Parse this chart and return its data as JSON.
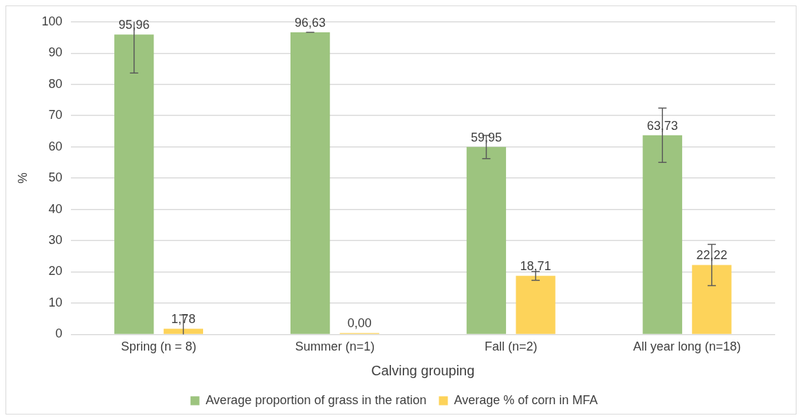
{
  "chart_data": {
    "type": "bar",
    "xlabel": "Calving grouping",
    "ylabel": "%",
    "categories": [
      "Spring (n = 8)",
      "Summer (n=1)",
      "Fall (n=2)",
      "All year long (n=18)"
    ],
    "series": [
      {
        "name": "Average proportion of grass in the ration",
        "color": "#9dc47f",
        "values": [
          95.96,
          96.63,
          59.95,
          63.73
        ],
        "value_labels": [
          "95,96",
          "96,63",
          "59,95",
          "63,73"
        ],
        "errors": [
          [
            83.6,
            100
          ],
          0,
          3.7,
          8.7
        ]
      },
      {
        "name": "Average % of corn in MFA",
        "color": "#fdd35a",
        "values": [
          1.78,
          0,
          18.71,
          22.22
        ],
        "value_labels": [
          "1,78",
          "0,00",
          "18,71",
          "22,22"
        ],
        "errors": [
          [
            0,
            6.2
          ],
          null,
          1.4,
          6.6
        ]
      }
    ],
    "ylim": [
      0,
      100
    ],
    "yticks": [
      0,
      10,
      20,
      30,
      40,
      50,
      60,
      70,
      80,
      90,
      100
    ],
    "grid": "y",
    "legend": "bottom"
  }
}
